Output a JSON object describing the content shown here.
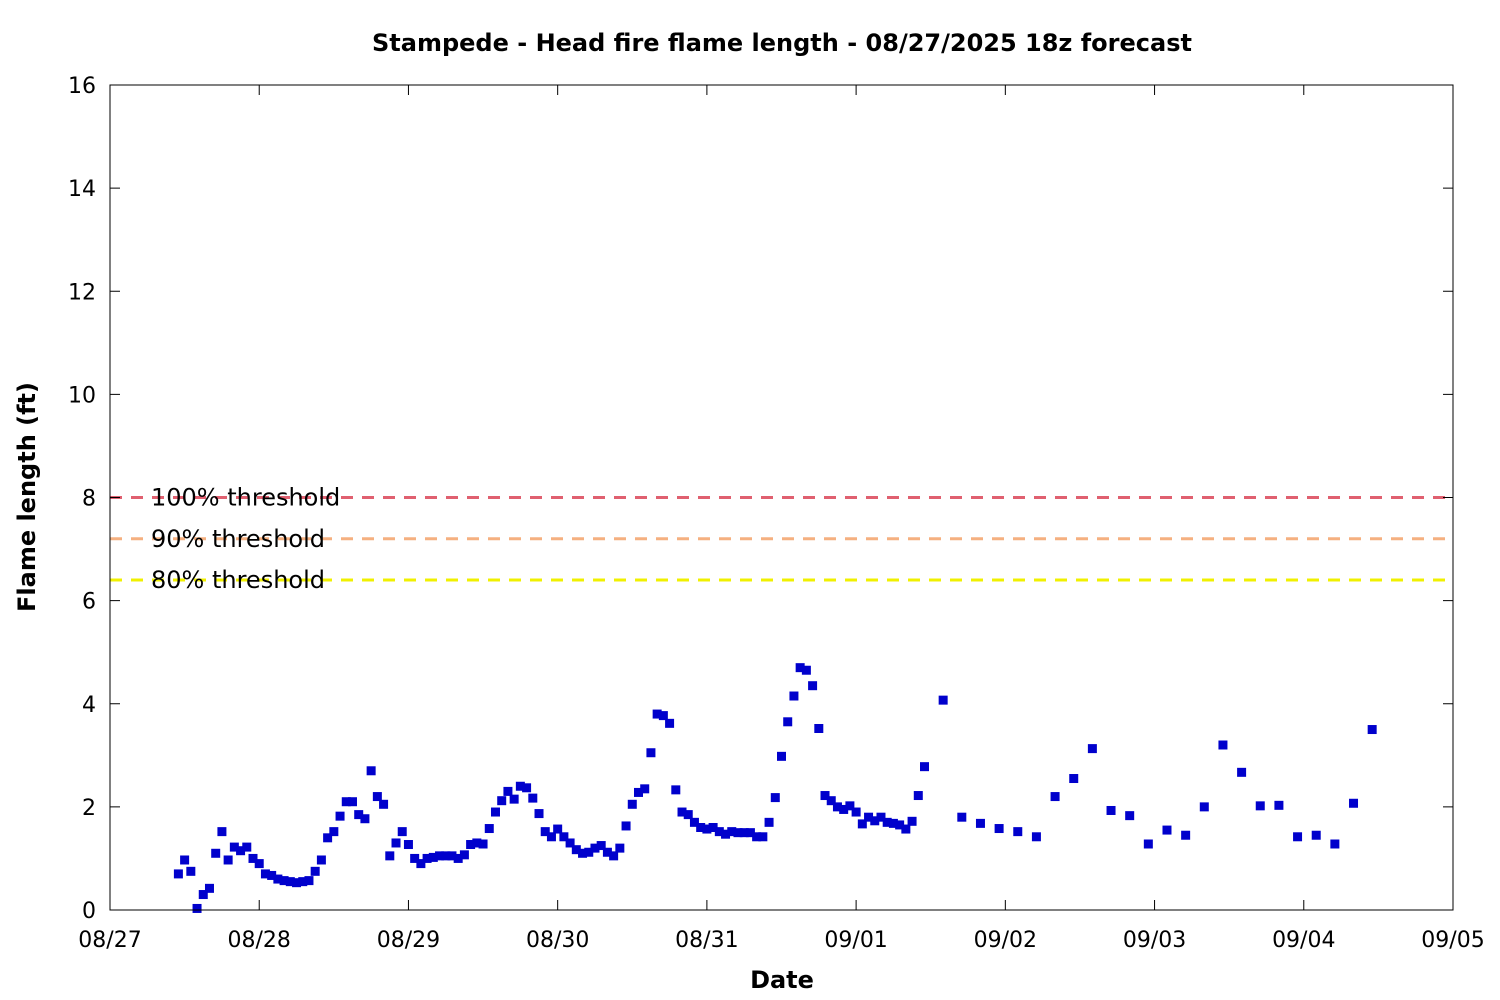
{
  "chart_data": {
    "type": "scatter",
    "title": "Stampede - Head fire flame length - 08/27/2025 18z forecast",
    "xlabel": "Date",
    "ylabel": "Flame length (ft)",
    "xlim": [
      "08/27 00:00",
      "09/05 00:00"
    ],
    "ylim": [
      0,
      16
    ],
    "x_ticks": [
      "08/27",
      "08/28",
      "08/29",
      "08/30",
      "08/31",
      "09/01",
      "09/02",
      "09/03",
      "09/04",
      "09/05"
    ],
    "y_ticks": [
      0,
      2,
      4,
      6,
      8,
      10,
      12,
      14,
      16
    ],
    "grid": false,
    "series_color": "#0000cc",
    "thresholds": [
      {
        "label": "100% threshold",
        "value": 8.0,
        "color": "#e06070"
      },
      {
        "label": "90% threshold",
        "value": 7.2,
        "color": "#f5b080"
      },
      {
        "label": "80% threshold",
        "value": 6.4,
        "color": "#f0f000"
      }
    ],
    "points": [
      [
        "08/27 11:00",
        0.7
      ],
      [
        "08/27 12:00",
        0.97
      ],
      [
        "08/27 13:00",
        0.75
      ],
      [
        "08/27 14:00",
        0.03
      ],
      [
        "08/27 15:00",
        0.3
      ],
      [
        "08/27 16:00",
        0.42
      ],
      [
        "08/27 17:00",
        1.1
      ],
      [
        "08/27 18:00",
        1.52
      ],
      [
        "08/27 19:00",
        0.97
      ],
      [
        "08/27 20:00",
        1.22
      ],
      [
        "08/27 21:00",
        1.15
      ],
      [
        "08/27 22:00",
        1.22
      ],
      [
        "08/27 23:00",
        1.0
      ],
      [
        "08/28 00:00",
        0.9
      ],
      [
        "08/28 01:00",
        0.7
      ],
      [
        "08/28 02:00",
        0.67
      ],
      [
        "08/28 03:00",
        0.6
      ],
      [
        "08/28 04:00",
        0.57
      ],
      [
        "08/28 05:00",
        0.55
      ],
      [
        "08/28 06:00",
        0.53
      ],
      [
        "08/28 07:00",
        0.55
      ],
      [
        "08/28 08:00",
        0.57
      ],
      [
        "08/28 09:00",
        0.75
      ],
      [
        "08/28 10:00",
        0.97
      ],
      [
        "08/28 11:00",
        1.4
      ],
      [
        "08/28 12:00",
        1.52
      ],
      [
        "08/28 13:00",
        1.82
      ],
      [
        "08/28 14:00",
        2.1
      ],
      [
        "08/28 15:00",
        2.1
      ],
      [
        "08/28 16:00",
        1.85
      ],
      [
        "08/28 17:00",
        1.77
      ],
      [
        "08/28 18:00",
        2.7
      ],
      [
        "08/28 19:00",
        2.2
      ],
      [
        "08/28 20:00",
        2.05
      ],
      [
        "08/28 21:00",
        1.05
      ],
      [
        "08/28 22:00",
        1.3
      ],
      [
        "08/28 23:00",
        1.52
      ],
      [
        "08/29 00:00",
        1.27
      ],
      [
        "08/29 01:00",
        1.0
      ],
      [
        "08/29 02:00",
        0.9
      ],
      [
        "08/29 03:00",
        1.0
      ],
      [
        "08/29 04:00",
        1.02
      ],
      [
        "08/29 05:00",
        1.05
      ],
      [
        "08/29 06:00",
        1.05
      ],
      [
        "08/29 07:00",
        1.05
      ],
      [
        "08/29 08:00",
        1.0
      ],
      [
        "08/29 09:00",
        1.07
      ],
      [
        "08/29 10:00",
        1.27
      ],
      [
        "08/29 11:00",
        1.3
      ],
      [
        "08/29 12:00",
        1.28
      ],
      [
        "08/29 13:00",
        1.58
      ],
      [
        "08/29 14:00",
        1.9
      ],
      [
        "08/29 15:00",
        2.12
      ],
      [
        "08/29 16:00",
        2.3
      ],
      [
        "08/29 17:00",
        2.15
      ],
      [
        "08/29 18:00",
        2.4
      ],
      [
        "08/29 19:00",
        2.37
      ],
      [
        "08/29 20:00",
        2.17
      ],
      [
        "08/29 21:00",
        1.87
      ],
      [
        "08/29 22:00",
        1.52
      ],
      [
        "08/29 23:00",
        1.42
      ],
      [
        "08/30 00:00",
        1.57
      ],
      [
        "08/30 01:00",
        1.42
      ],
      [
        "08/30 02:00",
        1.3
      ],
      [
        "08/30 03:00",
        1.17
      ],
      [
        "08/30 04:00",
        1.1
      ],
      [
        "08/30 05:00",
        1.12
      ],
      [
        "08/30 06:00",
        1.2
      ],
      [
        "08/30 07:00",
        1.25
      ],
      [
        "08/30 08:00",
        1.12
      ],
      [
        "08/30 09:00",
        1.05
      ],
      [
        "08/30 10:00",
        1.2
      ],
      [
        "08/30 11:00",
        1.63
      ],
      [
        "08/30 12:00",
        2.05
      ],
      [
        "08/30 13:00",
        2.28
      ],
      [
        "08/30 14:00",
        2.35
      ],
      [
        "08/30 15:00",
        3.05
      ],
      [
        "08/30 16:00",
        3.8
      ],
      [
        "08/30 17:00",
        3.77
      ],
      [
        "08/30 18:00",
        3.62
      ],
      [
        "08/30 19:00",
        2.33
      ],
      [
        "08/30 20:00",
        1.9
      ],
      [
        "08/30 21:00",
        1.85
      ],
      [
        "08/30 22:00",
        1.7
      ],
      [
        "08/30 23:00",
        1.6
      ],
      [
        "08/31 00:00",
        1.57
      ],
      [
        "08/31 01:00",
        1.6
      ],
      [
        "08/31 02:00",
        1.52
      ],
      [
        "08/31 03:00",
        1.47
      ],
      [
        "08/31 04:00",
        1.52
      ],
      [
        "08/31 05:00",
        1.5
      ],
      [
        "08/31 06:00",
        1.5
      ],
      [
        "08/31 07:00",
        1.5
      ],
      [
        "08/31 08:00",
        1.42
      ],
      [
        "08/31 09:00",
        1.42
      ],
      [
        "08/31 10:00",
        1.7
      ],
      [
        "08/31 11:00",
        2.18
      ],
      [
        "08/31 12:00",
        2.98
      ],
      [
        "08/31 13:00",
        3.65
      ],
      [
        "08/31 14:00",
        4.15
      ],
      [
        "08/31 15:00",
        4.7
      ],
      [
        "08/31 16:00",
        4.65
      ],
      [
        "08/31 17:00",
        4.35
      ],
      [
        "08/31 18:00",
        3.52
      ],
      [
        "08/31 19:00",
        2.22
      ],
      [
        "08/31 20:00",
        2.12
      ],
      [
        "08/31 21:00",
        2.0
      ],
      [
        "08/31 22:00",
        1.95
      ],
      [
        "08/31 23:00",
        2.02
      ],
      [
        "09/01 00:00",
        1.9
      ],
      [
        "09/01 01:00",
        1.67
      ],
      [
        "09/01 02:00",
        1.8
      ],
      [
        "09/01 03:00",
        1.73
      ],
      [
        "09/01 04:00",
        1.8
      ],
      [
        "09/01 05:00",
        1.7
      ],
      [
        "09/01 06:00",
        1.68
      ],
      [
        "09/01 07:00",
        1.65
      ],
      [
        "09/01 08:00",
        1.57
      ],
      [
        "09/01 09:00",
        1.72
      ],
      [
        "09/01 10:00",
        2.22
      ],
      [
        "09/01 11:00",
        2.78
      ],
      [
        "09/01 14:00",
        4.07
      ],
      [
        "09/01 17:00",
        1.8
      ],
      [
        "09/01 20:00",
        1.68
      ],
      [
        "09/01 23:00",
        1.58
      ],
      [
        "09/02 02:00",
        1.52
      ],
      [
        "09/02 05:00",
        1.42
      ],
      [
        "09/02 08:00",
        2.2
      ],
      [
        "09/02 11:00",
        2.55
      ],
      [
        "09/02 14:00",
        3.13
      ],
      [
        "09/02 17:00",
        1.93
      ],
      [
        "09/02 20:00",
        1.83
      ],
      [
        "09/02 23:00",
        1.28
      ],
      [
        "09/03 02:00",
        1.55
      ],
      [
        "09/03 05:00",
        1.45
      ],
      [
        "09/03 08:00",
        2.0
      ],
      [
        "09/03 11:00",
        3.2
      ],
      [
        "09/03 14:00",
        2.67
      ],
      [
        "09/03 17:00",
        2.02
      ],
      [
        "09/03 20:00",
        2.03
      ],
      [
        "09/03 23:00",
        1.42
      ],
      [
        "09/04 02:00",
        1.45
      ],
      [
        "09/04 05:00",
        1.28
      ],
      [
        "09/04 08:00",
        2.07
      ],
      [
        "09/04 11:00",
        3.5
      ]
    ]
  }
}
